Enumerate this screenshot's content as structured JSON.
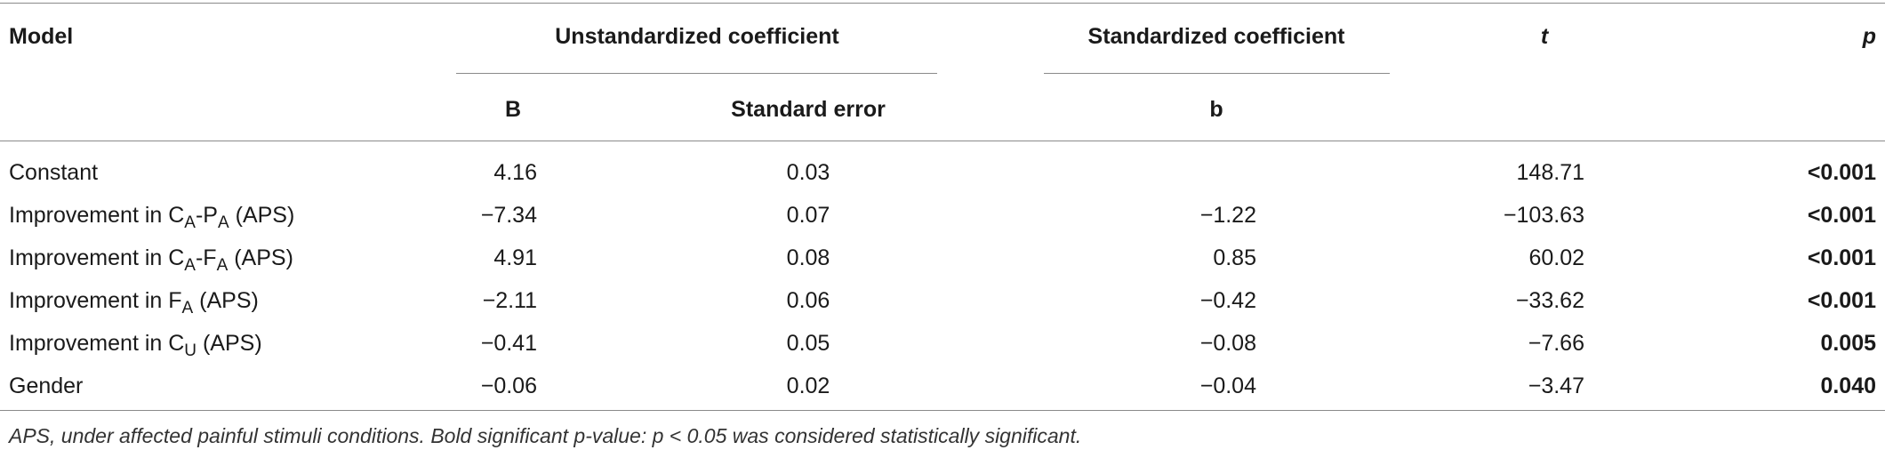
{
  "table": {
    "headers": {
      "model": "Model",
      "unstandardized": "Unstandardized coefficient",
      "standardized": "Standardized coefficient",
      "t": "t",
      "p": "p",
      "b_upper": "B",
      "standard_error": "Standard error",
      "b_lower": "b"
    },
    "rows": [
      {
        "model": {
          "pre": "Constant"
        },
        "B": "4.16",
        "se": "0.03",
        "b": "",
        "t": "148.71",
        "p": "<0.001"
      },
      {
        "model": {
          "pre": "Improvement in C",
          "sub1": "A",
          "mid": "-P",
          "sub2": "A",
          "post": " (APS)"
        },
        "B": "−7.34",
        "se": "0.07",
        "b": "−1.22",
        "t": "−103.63",
        "p": "<0.001"
      },
      {
        "model": {
          "pre": "Improvement in C",
          "sub1": "A",
          "mid": "-F",
          "sub2": "A",
          "post": " (APS)"
        },
        "B": "4.91",
        "se": "0.08",
        "b": "0.85",
        "t": "60.02",
        "p": "<0.001"
      },
      {
        "model": {
          "pre": "Improvement in F",
          "sub1": "A",
          "post": " (APS)"
        },
        "B": "−2.11",
        "se": "0.06",
        "b": "−0.42",
        "t": "−33.62",
        "p": "<0.001"
      },
      {
        "model": {
          "pre": "Improvement in C",
          "sub1": "U",
          "post": " (APS)"
        },
        "B": "−0.41",
        "se": "0.05",
        "b": "−0.08",
        "t": "−7.66",
        "p": "0.005"
      },
      {
        "model": {
          "pre": "Gender"
        },
        "B": "−0.06",
        "se": "0.02",
        "b": "−0.04",
        "t": "−3.47",
        "p": "0.040"
      }
    ]
  },
  "footnote": "APS, under affected painful stimuli conditions. Bold significant p-value: p < 0.05 was considered statistically significant."
}
